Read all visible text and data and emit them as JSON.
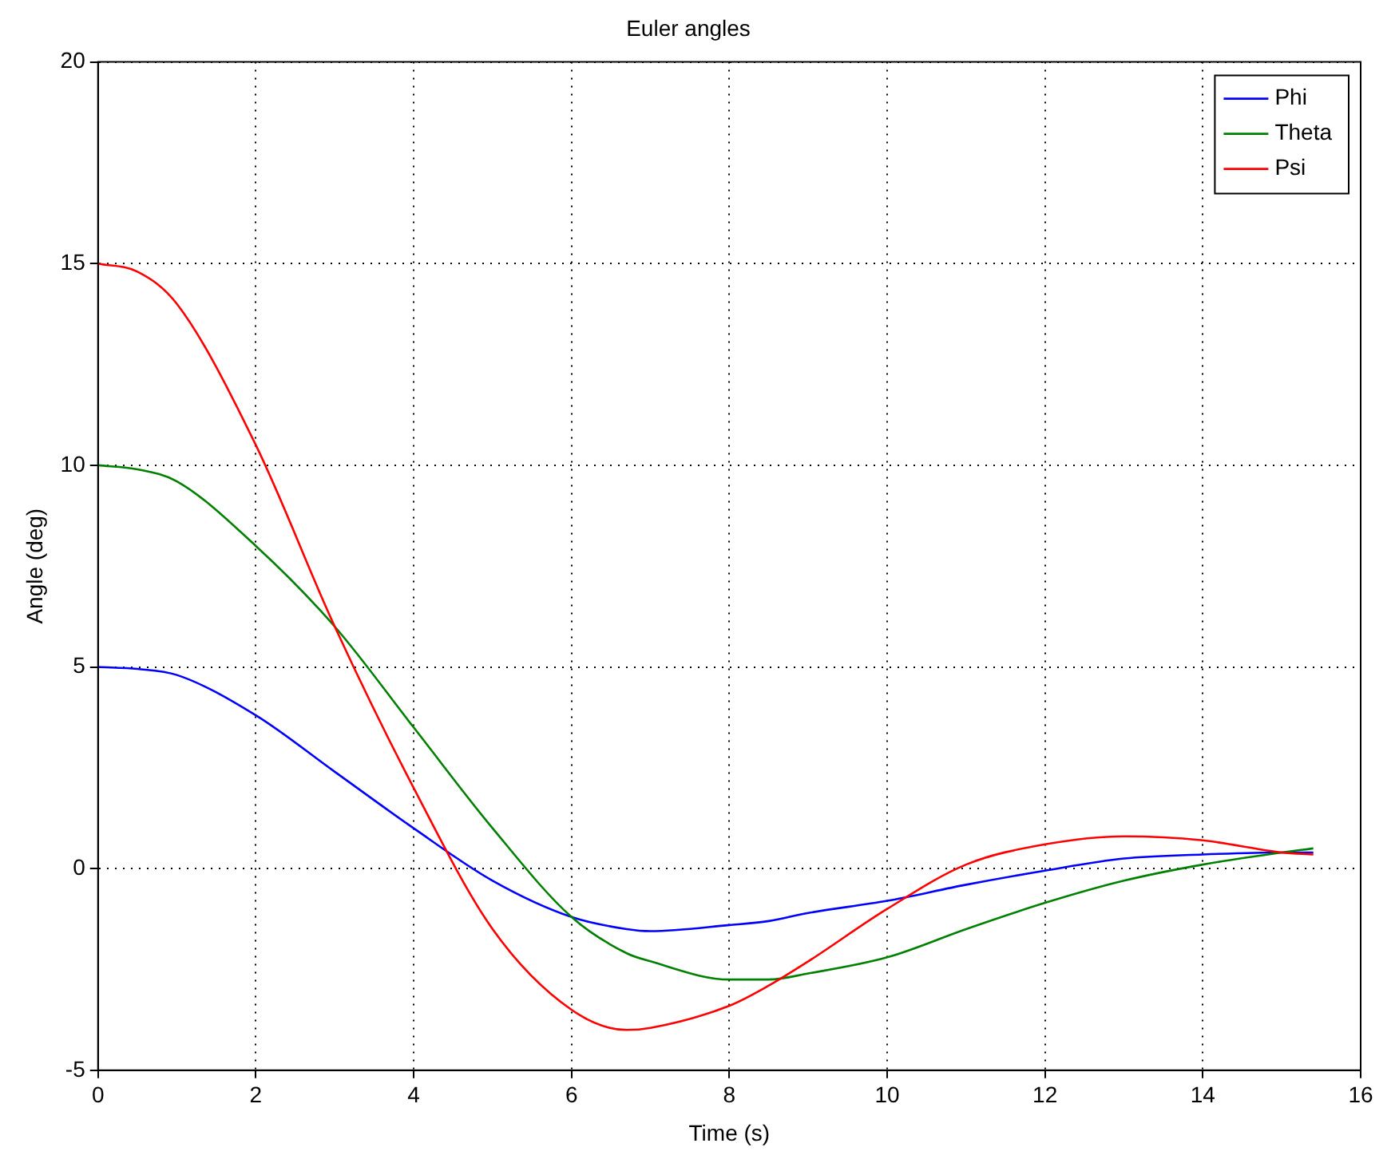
{
  "chart_data": {
    "type": "line",
    "title": "Euler angles",
    "xlabel": "Time (s)",
    "ylabel": "Angle (deg)",
    "xlim": [
      0,
      16
    ],
    "xticks": [
      0,
      2,
      4,
      6,
      8,
      10,
      12,
      14,
      16
    ],
    "ylim": [
      -5,
      20
    ],
    "yticks": [
      -5,
      0,
      5,
      10,
      15,
      20
    ],
    "grid": true,
    "legend": "top right",
    "marker": "none",
    "line_style": "solid",
    "x": [
      0,
      0.5,
      1,
      2,
      3,
      4,
      5,
      6,
      6.7,
      7,
      8,
      8.5,
      9,
      10,
      11,
      12,
      13,
      14,
      15,
      15.4
    ],
    "series": [
      {
        "name": "Phi",
        "color": "#0000ff",
        "values": [
          5,
          4.95,
          4.8,
          3.8,
          2.4,
          1.0,
          -0.3,
          -1.2,
          -1.5,
          -1.55,
          -1.4,
          -1.3,
          -1.1,
          -0.8,
          -0.4,
          -0.05,
          0.25,
          0.35,
          0.4,
          0.4
        ]
      },
      {
        "name": "Theta",
        "color": "#008000",
        "values": [
          10,
          9.9,
          9.6,
          8,
          6,
          3.5,
          1.0,
          -1.2,
          -2.1,
          -2.3,
          -2.75,
          -2.75,
          -2.6,
          -2.2,
          -1.5,
          -0.85,
          -0.3,
          0.1,
          0.4,
          0.5
        ]
      },
      {
        "name": "Psi",
        "color": "#ff0000",
        "values": [
          15,
          14.8,
          14,
          10.5,
          6,
          2,
          -1.5,
          -3.5,
          -4.0,
          -3.95,
          -3.4,
          -2.9,
          -2.3,
          -1.0,
          0.1,
          0.6,
          0.8,
          0.7,
          0.4,
          0.35
        ]
      }
    ]
  }
}
